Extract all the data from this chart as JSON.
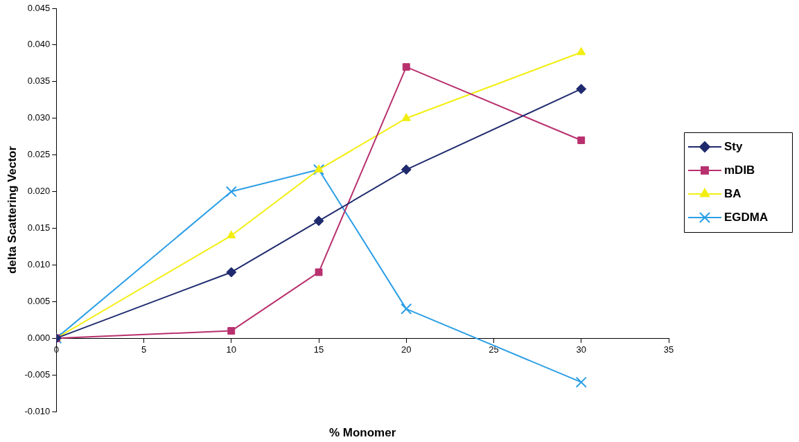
{
  "chart_data": {
    "type": "line",
    "xlabel": "% Monomer",
    "ylabel": "delta Scattering Vector",
    "xlim": [
      0,
      35
    ],
    "xticks": [
      0,
      5,
      10,
      15,
      20,
      25,
      30,
      35
    ],
    "ylim": [
      -0.01,
      0.045
    ],
    "yticks": [
      {
        "value": -0.01,
        "label": "-0.010"
      },
      {
        "value": -0.005,
        "label": "-0.005"
      },
      {
        "value": 0,
        "label": "0.000"
      },
      {
        "value": 0.005,
        "label": "0.005"
      },
      {
        "value": 0.01,
        "label": "0.010"
      },
      {
        "value": 0.015,
        "label": "0.015"
      },
      {
        "value": 0.02,
        "label": "0.020"
      },
      {
        "value": 0.025,
        "label": "0.025"
      },
      {
        "value": 0.03,
        "label": "0.030"
      },
      {
        "value": 0.035,
        "label": "0.035"
      },
      {
        "value": 0.04,
        "label": "0.040"
      },
      {
        "value": 0.045,
        "label": "0.045"
      }
    ],
    "x": [
      0,
      10,
      15,
      20,
      30
    ],
    "series": [
      {
        "name": "Sty",
        "color": "#1f2a6e",
        "marker": "diamond",
        "values": [
          0,
          0.009,
          0.016,
          0.023,
          0.034
        ]
      },
      {
        "name": "mDIB",
        "color": "#b8306e",
        "marker": "square",
        "values": [
          0,
          0.001,
          0.009,
          0.037,
          0.027
        ]
      },
      {
        "name": "BA",
        "color": "#f2ee10",
        "marker": "triangle",
        "values": [
          0,
          0.014,
          0.023,
          0.03,
          0.039
        ]
      },
      {
        "name": "EGDMA",
        "color": "#2a9ee6",
        "marker": "cross",
        "values": [
          0,
          0.02,
          0.023,
          0.004,
          -0.006
        ]
      }
    ],
    "grid": false,
    "legend": "right",
    "line_style": "solid"
  }
}
